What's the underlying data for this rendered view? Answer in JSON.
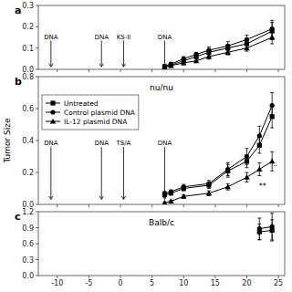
{
  "chart_data": [
    {
      "type": "line",
      "panel_label": "a",
      "xlim": [
        -13,
        26
      ],
      "ylim": [
        0.0,
        0.3
      ],
      "xticks": [
        -10,
        -5,
        0,
        5,
        10,
        15,
        20,
        25
      ],
      "yticks": [
        {
          "value": 0.0,
          "label": "0.0"
        },
        0.1,
        0.2,
        0.3
      ],
      "tick_labels": "y",
      "annotations": [
        {
          "text": "DNA",
          "x": -11
        },
        {
          "text": "DNA",
          "x": -3
        },
        {
          "text": "KS-Il",
          "x": 0.5
        },
        {
          "text": "DNA",
          "x": 7
        }
      ],
      "series": [
        {
          "color": "black",
          "marker": "square",
          "x": [
            7,
            8,
            10,
            12,
            14,
            17,
            20,
            24
          ],
          "values": [
            0.01,
            0.02,
            0.04,
            0.06,
            0.08,
            0.1,
            0.12,
            0.18
          ],
          "errors": [
            0.005,
            0.005,
            0.01,
            0.01,
            0.015,
            0.015,
            0.02,
            0.04
          ]
        },
        {
          "color": "black",
          "marker": "circle",
          "x": [
            7,
            8,
            10,
            12,
            14,
            17,
            20,
            24
          ],
          "values": [
            0.015,
            0.025,
            0.05,
            0.07,
            0.09,
            0.11,
            0.14,
            0.19
          ],
          "errors": [
            0.005,
            0.005,
            0.01,
            0.01,
            0.015,
            0.02,
            0.02,
            0.04
          ]
        },
        {
          "color": "black",
          "marker": "triangle",
          "x": [
            7,
            8,
            10,
            12,
            14,
            17,
            20,
            24
          ],
          "values": [
            0.01,
            0.018,
            0.03,
            0.04,
            0.06,
            0.08,
            0.1,
            0.15
          ],
          "errors": [
            0.004,
            0.004,
            0.008,
            0.008,
            0.012,
            0.012,
            0.015,
            0.03
          ]
        }
      ]
    },
    {
      "type": "line",
      "panel_label": "b",
      "title": "nu/nu",
      "ylabel": "Tumor Size",
      "xlim": [
        -13,
        26
      ],
      "ylim": [
        0.0,
        0.8
      ],
      "xticks": [
        -10,
        -5,
        0,
        5,
        10,
        15,
        20,
        25
      ],
      "yticks": [
        {
          "value": 0.0,
          "label": "0.0"
        },
        0.2,
        0.4,
        0.6,
        0.8
      ],
      "tick_labels": "y",
      "legend": "upper left",
      "annotations": [
        {
          "text": "DNA",
          "x": -11
        },
        {
          "text": "DNA",
          "x": -3
        },
        {
          "text": "TS/A",
          "x": 0.5
        },
        {
          "text": "DNA",
          "x": 7
        },
        {
          "text": "**",
          "x": 22.5,
          "y": 0.095
        },
        {
          "text": "..",
          "x": 24.5,
          "y": 0.24
        }
      ],
      "series": [
        {
          "name": "Untreated",
          "color": "black",
          "marker": "square",
          "x": [
            7,
            8,
            10,
            14,
            17,
            20,
            22,
            24
          ],
          "values": [
            0.06,
            0.07,
            0.1,
            0.12,
            0.21,
            0.27,
            0.37,
            0.55
          ],
          "errors": [
            0.01,
            0.01,
            0.015,
            0.02,
            0.04,
            0.04,
            0.05,
            0.07
          ]
        },
        {
          "name": "Control plasmid DNA",
          "color": "black",
          "marker": "circle",
          "x": [
            7,
            8,
            10,
            14,
            17,
            20,
            22,
            24
          ],
          "values": [
            0.07,
            0.08,
            0.11,
            0.13,
            0.22,
            0.3,
            0.43,
            0.62
          ],
          "errors": [
            0.01,
            0.01,
            0.015,
            0.02,
            0.04,
            0.05,
            0.06,
            0.08
          ]
        },
        {
          "name": "IL-12 plasmid DNA",
          "color": "black",
          "marker": "triangle",
          "x": [
            7,
            8,
            10,
            14,
            17,
            20,
            22,
            24
          ],
          "values": [
            0.01,
            0.02,
            0.05,
            0.07,
            0.11,
            0.17,
            0.22,
            0.27
          ],
          "errors": [
            0.005,
            0.005,
            0.01,
            0.015,
            0.02,
            0.03,
            0.04,
            0.06
          ]
        }
      ]
    },
    {
      "type": "line",
      "panel_label": "c",
      "title": "Balb/c",
      "xlim": [
        -13,
        26
      ],
      "ylim": [
        0.0,
        1.2
      ],
      "xticks": [
        -10,
        -5,
        0,
        5,
        10,
        15,
        20,
        25
      ],
      "yticks": [
        {
          "value": 0.0,
          "label": "0.0"
        },
        0.3,
        0.6,
        0.9,
        1.2
      ],
      "series": [
        {
          "color": "black",
          "marker": "square",
          "x": [
            22,
            24
          ],
          "values": [
            0.82,
            0.85
          ],
          "errors": [
            0.15,
            0.2
          ]
        },
        {
          "color": "black",
          "marker": "circle",
          "x": [
            22,
            24
          ],
          "values": [
            0.88,
            0.92
          ],
          "errors": [
            0.2,
            0.25
          ]
        }
      ]
    }
  ]
}
